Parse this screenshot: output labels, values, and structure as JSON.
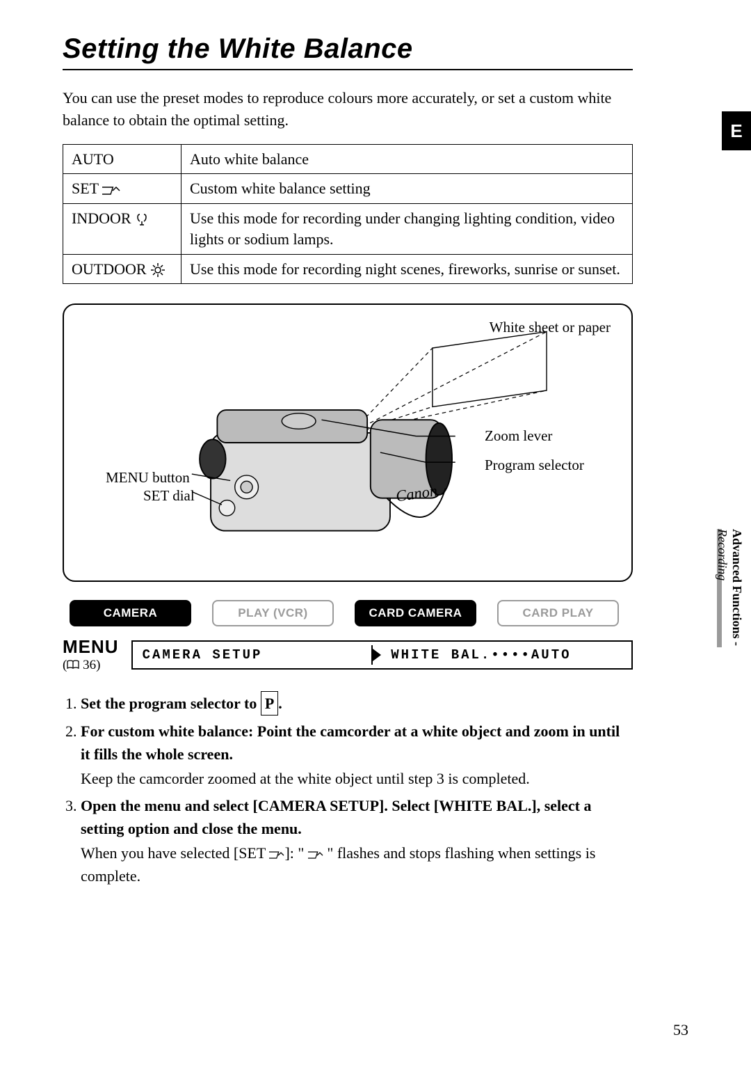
{
  "page": {
    "title": "Setting the White Balance",
    "intro": "You can use the preset modes to reproduce colours more accurately, or set a custom white balance to obtain the optimal setting.",
    "pageNumber": "53",
    "langTab": "E"
  },
  "sideTab": {
    "bold": "Advanced Functions -",
    "ital": "Recording"
  },
  "modesTable": {
    "rows": [
      {
        "name": "AUTO",
        "iconType": "",
        "desc": "Auto white balance"
      },
      {
        "name": "SET",
        "iconType": "set",
        "desc": "Custom white balance setting"
      },
      {
        "name": "INDOOR",
        "iconType": "indoor",
        "desc": "Use this mode for recording under changing lighting condition, video lights or sodium lamps."
      },
      {
        "name": "OUTDOOR",
        "iconType": "outdoor",
        "desc": "Use this mode for recording night scenes, fireworks, sunrise or sunset."
      }
    ]
  },
  "diagram": {
    "labels": {
      "whiteSheet": "White sheet or paper",
      "zoomLever": "Zoom lever",
      "programSelector": "Program selector",
      "menuButton": "MENU button",
      "setDial": "SET dial"
    }
  },
  "modeTabs": [
    {
      "label": "CAMERA",
      "state": "active"
    },
    {
      "label": "PLAY (VCR)",
      "state": "inactive"
    },
    {
      "label": "CARD CAMERA",
      "state": "active"
    },
    {
      "label": "CARD PLAY",
      "state": "inactive"
    }
  ],
  "menu": {
    "label": "MENU",
    "ref": "36",
    "left": "CAMERA SETUP",
    "right": "WHITE BAL.••••AUTO"
  },
  "steps": {
    "s1a": "Set the program selector to ",
    "s1b": "P",
    "s1c": ".",
    "s2": "For custom white balance: Point the camcorder at a white object and zoom in until it fills the whole screen.",
    "s2sub": "Keep the camcorder zoomed at the white object until step 3 is completed.",
    "s3": "Open the menu and select [CAMERA SETUP]. Select [WHITE BAL.], select a setting option and close the menu.",
    "s3suba": "When you have selected [SET ",
    "s3subb": "]: \" ",
    "s3subc": " \" flashes and stops flashing when settings is complete."
  }
}
